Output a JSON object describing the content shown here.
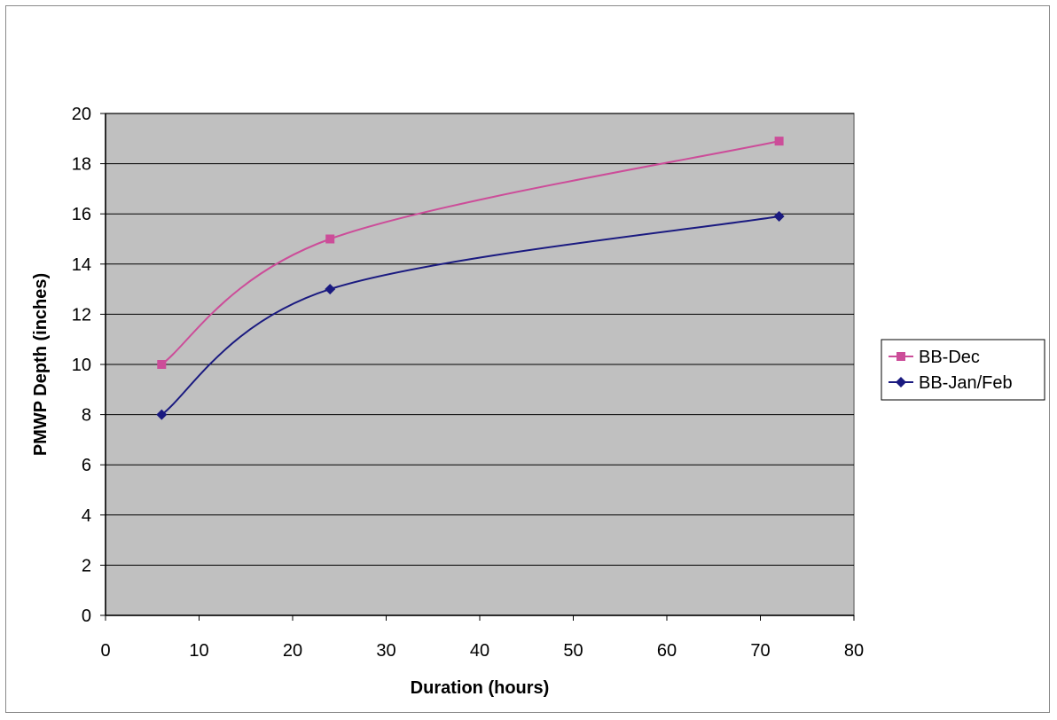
{
  "chart_data": {
    "type": "line",
    "title": "",
    "xlabel": "Duration (hours)",
    "ylabel": "PMWP Depth (inches)",
    "xlim": [
      0,
      80
    ],
    "ylim": [
      0,
      20
    ],
    "x_ticks": [
      "0",
      "10",
      "20",
      "30",
      "40",
      "50",
      "60",
      "70",
      "80"
    ],
    "y_ticks": [
      "0",
      "2",
      "4",
      "6",
      "8",
      "10",
      "12",
      "14",
      "16",
      "18",
      "20"
    ],
    "x_tick_values": [
      0,
      10,
      20,
      30,
      40,
      50,
      60,
      70,
      80
    ],
    "y_tick_values": [
      0,
      2,
      4,
      6,
      8,
      10,
      12,
      14,
      16,
      18,
      20
    ],
    "grid": true,
    "legend_position": "right",
    "plot_background": "#c0c0c0",
    "series": [
      {
        "name": "BB-Dec",
        "color": "#cc4d99",
        "marker": "square",
        "x": [
          6,
          24,
          72
        ],
        "y": [
          10,
          15,
          18.9
        ]
      },
      {
        "name": "BB-Jan/Feb",
        "color": "#1a1a80",
        "marker": "diamond",
        "x": [
          6,
          24,
          72
        ],
        "y": [
          8,
          13,
          15.9
        ]
      }
    ]
  }
}
